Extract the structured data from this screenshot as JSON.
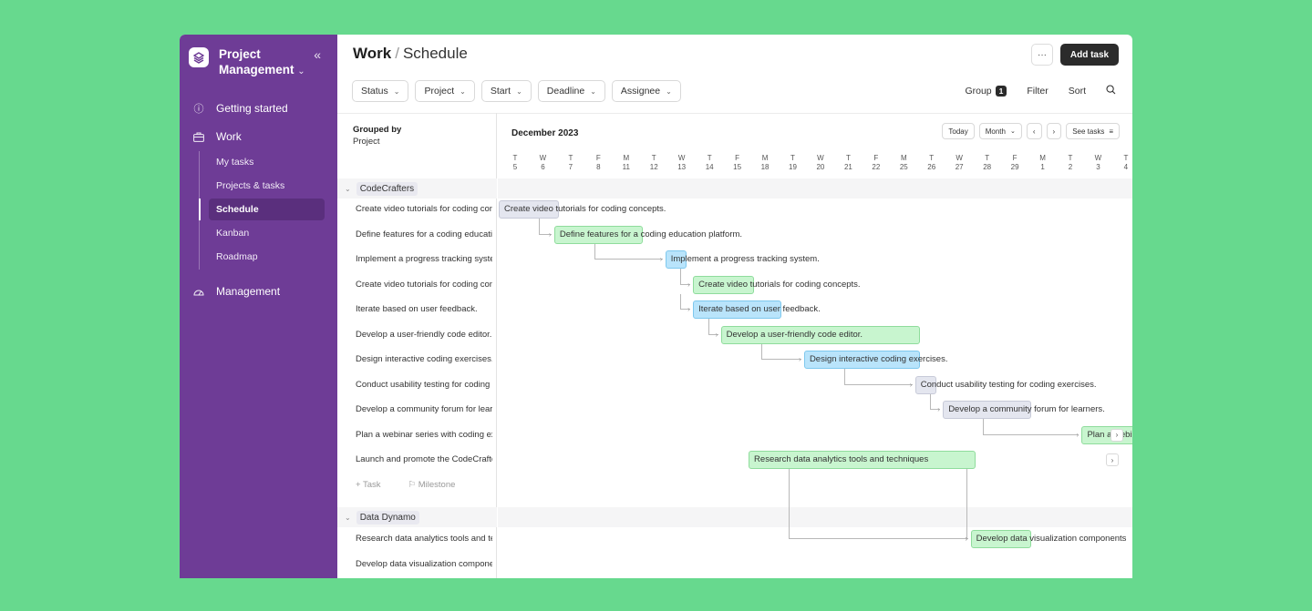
{
  "sidebar": {
    "app_title": "Project Management",
    "collapse_icon": "«",
    "nav": [
      {
        "label": "Getting started",
        "icon": "info-icon"
      },
      {
        "label": "Work",
        "icon": "briefcase-icon"
      },
      {
        "label": "Management",
        "icon": "gauge-icon"
      }
    ],
    "sub_items": [
      "My tasks",
      "Projects & tasks",
      "Schedule",
      "Kanban",
      "Roadmap"
    ],
    "active_sub": "Schedule"
  },
  "header": {
    "title_bold": "Work",
    "title_sep": "/",
    "title_rest": "Schedule",
    "more_label": "···",
    "add_task_label": "Add task"
  },
  "filters": [
    "Status",
    "Project",
    "Start",
    "Deadline",
    "Assignee"
  ],
  "tools": {
    "group_label": "Group",
    "group_count": "1",
    "filter_label": "Filter",
    "sort_label": "Sort"
  },
  "list": {
    "grouped_by_label": "Grouped by",
    "grouped_by_value": "Project",
    "add_task": "Task",
    "add_milestone": "Milestone"
  },
  "groups": [
    {
      "name": "CodeCrafters",
      "tasks": [
        "Create video tutorials for coding concepts.",
        "Define features for a coding education platform.",
        "Implement a progress tracking system.",
        "Create video tutorials for coding concepts.",
        "Iterate based on user feedback.",
        "Develop a user-friendly code editor.",
        "Design interactive coding exercises.",
        "Conduct usability testing for coding exercises.",
        "Develop a community forum for learners.",
        "Plan a webinar series with coding experts.",
        "Launch and promote the CodeCrafters platform."
      ]
    },
    {
      "name": "Data Dynamo",
      "tasks": [
        "Research data analytics tools and techniques",
        "Develop data visualization components"
      ]
    }
  ],
  "gantt": {
    "month_label": "December 2023",
    "today_label": "Today",
    "view_label": "Month",
    "prev_label": "‹",
    "next_label": "›",
    "see_tasks_label": "See tasks",
    "days": [
      {
        "w": "T",
        "d": "5"
      },
      {
        "w": "W",
        "d": "6"
      },
      {
        "w": "T",
        "d": "7"
      },
      {
        "w": "F",
        "d": "8"
      },
      {
        "w": "M",
        "d": "11"
      },
      {
        "w": "T",
        "d": "12"
      },
      {
        "w": "W",
        "d": "13"
      },
      {
        "w": "T",
        "d": "14"
      },
      {
        "w": "F",
        "d": "15"
      },
      {
        "w": "M",
        "d": "18"
      },
      {
        "w": "T",
        "d": "19"
      },
      {
        "w": "W",
        "d": "20"
      },
      {
        "w": "T",
        "d": "21"
      },
      {
        "w": "F",
        "d": "22"
      },
      {
        "w": "M",
        "d": "25"
      },
      {
        "w": "T",
        "d": "26"
      },
      {
        "w": "W",
        "d": "27"
      },
      {
        "w": "T",
        "d": "28"
      },
      {
        "w": "F",
        "d": "29"
      },
      {
        "w": "M",
        "d": "1"
      },
      {
        "w": "T",
        "d": "2"
      },
      {
        "w": "W",
        "d": "3"
      },
      {
        "w": "T",
        "d": "4"
      }
    ],
    "bars": [
      {
        "label": "Create video tutorials for coding concepts.",
        "start": "5",
        "end": "6",
        "color": "grey"
      },
      {
        "label": "Define features for a coding education platform.",
        "start": "7",
        "end": "11",
        "color": "green"
      },
      {
        "label": "Implement a progress tracking system.",
        "start": "13",
        "end": "13",
        "color": "blue"
      },
      {
        "label": "Create video tutorials for coding concepts.",
        "start": "14",
        "end": "15",
        "color": "green"
      },
      {
        "label": "Iterate based on user feedback.",
        "start": "14",
        "end": "18",
        "color": "blue"
      },
      {
        "label": "Develop a user-friendly code editor.",
        "start": "15",
        "end": "25",
        "color": "green"
      },
      {
        "label": "Design interactive coding exercises.",
        "start": "20",
        "end": "25",
        "color": "blue"
      },
      {
        "label": "Conduct usability testing for coding exercises.",
        "start": "26",
        "end": "26",
        "color": "grey"
      },
      {
        "label": "Develop a community forum for learners.",
        "start": "27",
        "end": "29",
        "color": "grey"
      },
      {
        "label": "Plan a webinar series with coding experts.",
        "start": "3",
        "end": "4",
        "color": "green"
      },
      {
        "label": "Research data analytics tools and techniques",
        "start": "18",
        "end": "27",
        "color": "green"
      },
      {
        "label": "Develop data visualization components",
        "start": "28",
        "end": "29",
        "color": "green"
      }
    ],
    "colors": {
      "grey": "#e4e6ef",
      "green": "#c8f5cf",
      "blue": "#b9e4fb",
      "sidebar": "#6e3c96"
    }
  }
}
